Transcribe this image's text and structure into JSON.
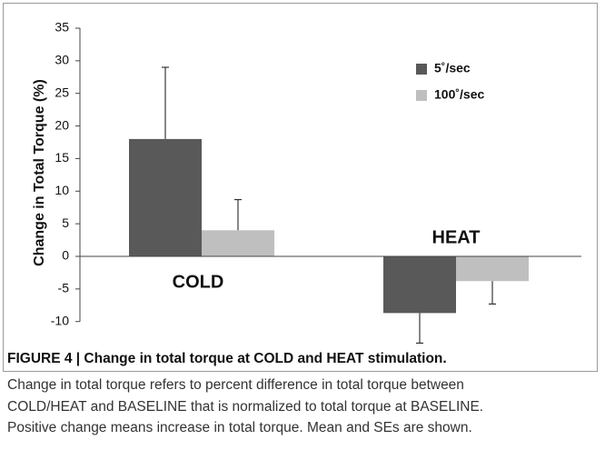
{
  "chart_data": {
    "type": "bar",
    "y_label": "Change in Total Torque (%)",
    "categories": [
      "COLD",
      "HEAT"
    ],
    "series": [
      {
        "name": "5˚/sec",
        "color": "#595959",
        "values": [
          18,
          -8.7
        ],
        "errors": [
          11,
          4.6
        ]
      },
      {
        "name": "100˚/sec",
        "color": "#bfbfbf",
        "values": [
          4,
          -3.8
        ],
        "errors": [
          4.7,
          3.5
        ]
      }
    ],
    "ylim": [
      -10,
      35
    ],
    "yticks": [
      -10,
      -5,
      0,
      5,
      10,
      15,
      20,
      25,
      30,
      35
    ],
    "grid": false
  },
  "caption": {
    "heading": "FIGURE 4 | Change in total torque at COLD and HEAT stimulation.",
    "lines": [
      "Change in total torque refers to percent difference in total torque between",
      "COLD/HEAT and BASELINE that is normalized to total torque at BASELINE.",
      "Positive change means increase in total torque. Mean and SEs are shown."
    ]
  }
}
